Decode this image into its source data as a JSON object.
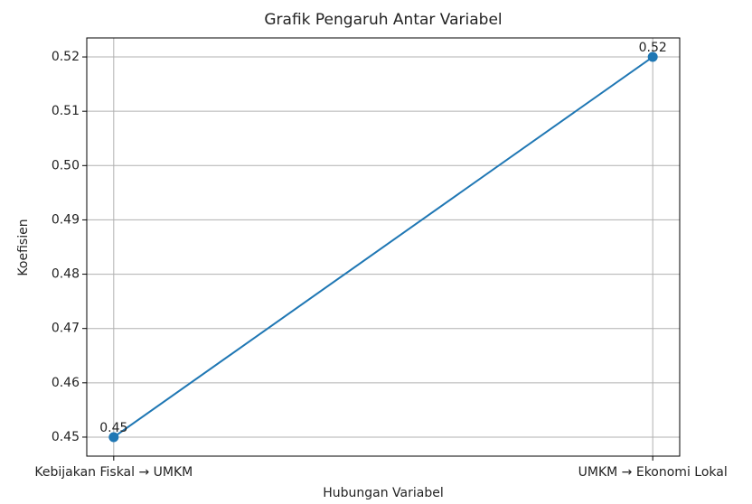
{
  "chart_data": {
    "type": "line",
    "title": "Grafik Pengaruh Antar Variabel",
    "x_label": "Hubungan Variabel",
    "y_label": "Koefisien",
    "categories": [
      "Kebijakan Fiskal → UMKM",
      "UMKM → Ekonomi Lokal"
    ],
    "values": [
      0.45,
      0.52
    ],
    "color": "#1f77b4",
    "ylim": [
      0.4465,
      0.5235
    ],
    "yticks": [
      0.45,
      0.46,
      0.47,
      0.48,
      0.49,
      {
        "value": 0.5,
        "label": "0.50"
      },
      0.51,
      0.52
    ],
    "grid": true
  }
}
